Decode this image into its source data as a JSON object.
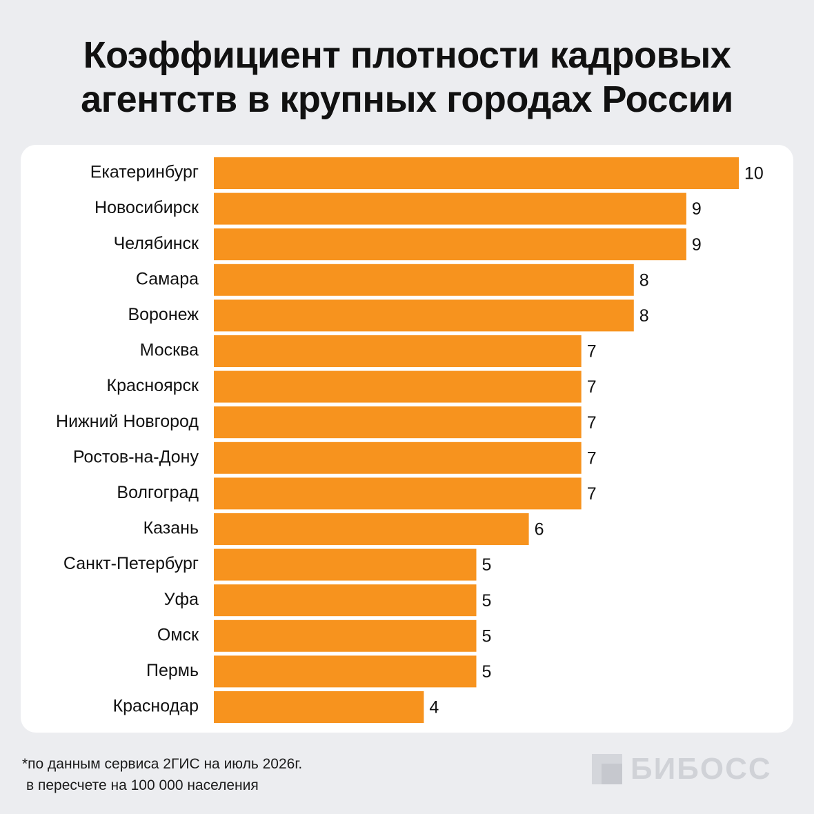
{
  "title_line1": "Коэффициент плотности кадровых",
  "title_line2": "агентств в крупных городах России",
  "footnote": {
    "line1": "*по данным сервиса 2ГИС на июль 2026г.",
    "line2": "в пересчете на 100 000 населения"
  },
  "logo": {
    "text": "БИБОСС",
    "icon": "bi-square-logo-icon"
  },
  "colors": {
    "bar": "#f7931e",
    "background": "#ecedf0",
    "card": "#ffffff",
    "text": "#111111"
  },
  "chart_data": {
    "type": "bar",
    "orientation": "horizontal",
    "title": "Коэффициент плотности кадровых агентств в крупных городах России",
    "categories": [
      "Екатеринбург",
      "Новосибирск",
      "Челябинск",
      "Самара",
      "Воронеж",
      "Москва",
      "Красноярск",
      "Нижний Новгород",
      "Ростов-на-Дону",
      "Волгоград",
      "Казань",
      "Санкт-Петербург",
      "Уфа",
      "Омск",
      "Пермь",
      "Краснодар"
    ],
    "values": [
      10,
      9,
      9,
      8,
      8,
      7,
      7,
      7,
      7,
      7,
      6,
      5,
      5,
      5,
      5,
      4
    ],
    "data_labels": [
      "10",
      "9",
      "9",
      "8",
      "8",
      "7",
      "7",
      "7",
      "7",
      "7",
      "6",
      "5",
      "5",
      "5",
      "5",
      "4"
    ],
    "xlim": [
      0,
      10
    ],
    "grid": false,
    "legend": "none"
  }
}
